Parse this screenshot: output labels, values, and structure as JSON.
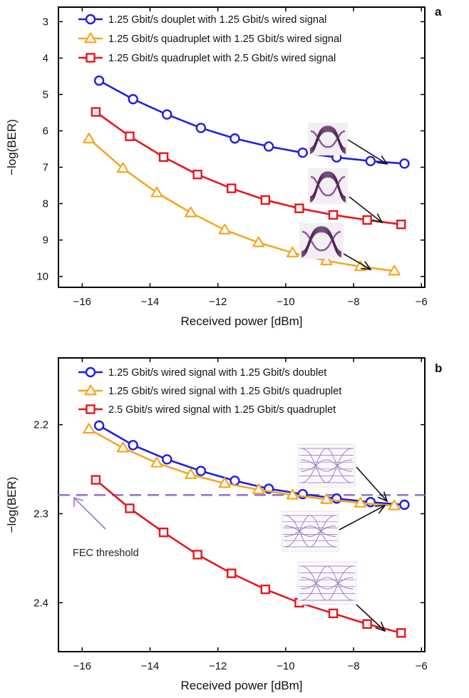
{
  "chart_data": [
    {
      "panel_label": "a",
      "type": "line",
      "xlabel": "Received power [dBm]",
      "ylabel": "−log(BER)",
      "xlim": [
        -16.7,
        -5.9
      ],
      "ylim": [
        2.6,
        10.3
      ],
      "y_inverted": true,
      "xticks": [
        -16,
        -14,
        -12,
        -10,
        -8,
        -6
      ],
      "xtick_labels": [
        "−16",
        "−14",
        "−12",
        "−10",
        "−8",
        "−6"
      ],
      "yticks": [
        3,
        4,
        5,
        6,
        7,
        8,
        9,
        10
      ],
      "ytick_labels": [
        "3",
        "4",
        "5",
        "6",
        "7",
        "8",
        "9",
        "10"
      ],
      "legend_position": "top",
      "series": [
        {
          "name": "1.25 Gbit/s douplet with 1.25 Gbit/s wired signal",
          "color": "#1f1fe0",
          "marker": "circle",
          "x": [
            -15.5,
            -14.5,
            -13.5,
            -12.5,
            -11.5,
            -10.5,
            -9.5,
            -8.5,
            -7.5,
            -6.5
          ],
          "y": [
            4.62,
            5.13,
            5.55,
            5.92,
            6.21,
            6.43,
            6.6,
            6.73,
            6.83,
            6.9
          ]
        },
        {
          "name": "1.25 Gbit/s quadruplet with 1.25 Gbit/s wired signal",
          "color": "#f5a623",
          "marker": "triangle",
          "x": [
            -15.8,
            -14.8,
            -13.8,
            -12.8,
            -11.8,
            -10.8,
            -9.8,
            -8.8,
            -7.8,
            -6.8
          ],
          "y": [
            6.22,
            7.03,
            7.7,
            8.25,
            8.72,
            9.07,
            9.35,
            9.57,
            9.73,
            9.85
          ]
        },
        {
          "name": "1.25 Gbit/s quadruplet with 2.5 Gbit/s wired signal",
          "color": "#e8161b",
          "marker": "square",
          "x": [
            -15.6,
            -14.6,
            -13.6,
            -12.6,
            -11.6,
            -10.6,
            -9.6,
            -8.6,
            -7.6,
            -6.6
          ],
          "y": [
            5.48,
            6.15,
            6.72,
            7.2,
            7.58,
            7.9,
            8.13,
            8.31,
            8.45,
            8.57
          ]
        }
      ],
      "eye_diagram_insets": 3
    },
    {
      "panel_label": "b",
      "type": "line",
      "xlabel": "Received power [dBm]",
      "ylabel": "−log(BER)",
      "xlim": [
        -16.7,
        -5.9
      ],
      "ylim": [
        2.125,
        2.455
      ],
      "y_inverted": true,
      "xticks": [
        -16,
        -14,
        -12,
        -10,
        -8,
        -6
      ],
      "xtick_labels": [
        "−16",
        "−14",
        "−12",
        "−10",
        "−8",
        "−6"
      ],
      "yticks": [
        2.2,
        2.3,
        2.4
      ],
      "ytick_labels": [
        "2.2",
        "2.3",
        "2.4"
      ],
      "legend_position": "top",
      "threshold": {
        "label": "FEC threshold",
        "value": 2.279,
        "color": "#9b72cf"
      },
      "series": [
        {
          "name": "1.25 Gbit/s wired signal with 1.25 Gbit/s doublet",
          "color": "#1f1fe0",
          "marker": "circle",
          "x": [
            -15.5,
            -14.5,
            -13.5,
            -12.5,
            -11.5,
            -10.5,
            -9.5,
            -8.5,
            -7.5,
            -6.5
          ],
          "y": [
            2.201,
            2.223,
            2.239,
            2.252,
            2.263,
            2.272,
            2.278,
            2.283,
            2.287,
            2.29
          ]
        },
        {
          "name": "1.25 Gbit/s wired signal with 1.25 Gbit/s quadruplet",
          "color": "#f5a623",
          "marker": "triangle",
          "x": [
            -15.8,
            -14.8,
            -13.8,
            -12.8,
            -11.8,
            -10.8,
            -9.8,
            -8.8,
            -7.8,
            -6.8
          ],
          "y": [
            2.205,
            2.226,
            2.243,
            2.256,
            2.266,
            2.273,
            2.279,
            2.284,
            2.288,
            2.291
          ]
        },
        {
          "name": "2.5 Gbit/s wired signal with 1.25 Gbit/s quadruplet",
          "color": "#e8161b",
          "marker": "square",
          "x": [
            -15.6,
            -14.6,
            -13.6,
            -12.6,
            -11.6,
            -10.6,
            -9.6,
            -8.6,
            -7.6,
            -6.6
          ],
          "y": [
            2.262,
            2.294,
            2.321,
            2.346,
            2.367,
            2.385,
            2.4,
            2.412,
            2.424,
            2.434
          ]
        }
      ],
      "eye_diagram_insets": 3
    }
  ]
}
